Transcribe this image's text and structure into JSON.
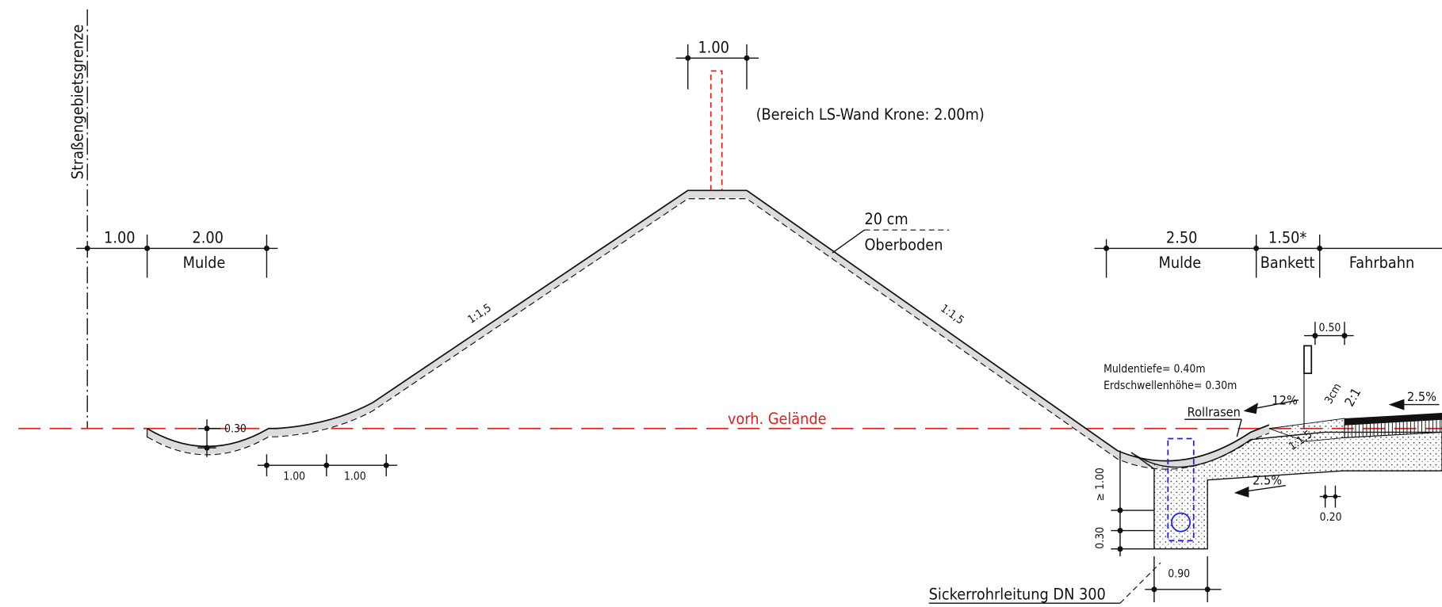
{
  "drawing": {
    "boundary_label": "Straßengebietsgrenze",
    "wall_width": "1.00",
    "wall_note": "(Bereich LS-Wand Krone: 2.00m)",
    "topsoil": [
      "20 cm",
      "Oberboden"
    ],
    "slope_left": "1:1,5",
    "slope_right": "1:1,5",
    "left_dims": [
      "1.00",
      "2.00"
    ],
    "left_ditch": "Mulde",
    "left_depth": "0.30",
    "left_lower_dims": [
      "1.00",
      "1.00"
    ],
    "ground": "vorh. Gelände",
    "right_dims": [
      "2.50",
      "1.50*"
    ],
    "right_labels": [
      "Mulde",
      "Bankett",
      "Fahrbahn"
    ],
    "post_width": "0.50",
    "ditch_notes": [
      "Muldentiefe= 0.40m",
      "Erdschwellenhöhe= 0.30m"
    ],
    "turf": "Rollrasen",
    "grades": [
      "12%",
      "2.5%",
      "2.5%"
    ],
    "asphalt": "3cm",
    "shoulder_slope": "2:1",
    "fill_slope": "1:1,5",
    "trench_depth": "≥ 1.00",
    "trench_base": "0.30",
    "trench_width": "0.90",
    "small_dim": "0.20",
    "pipe": "Sickerrohrleitung DN 300"
  }
}
